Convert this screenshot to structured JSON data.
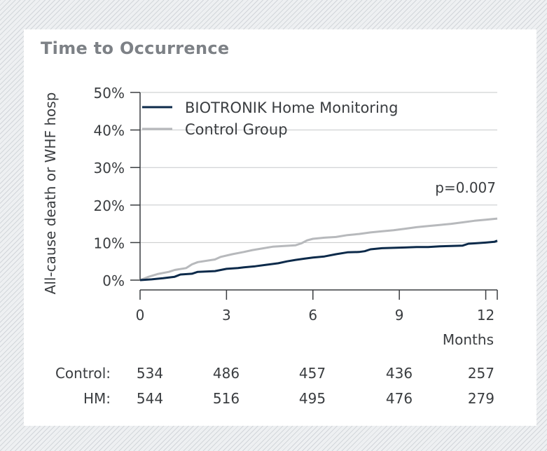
{
  "chart_data": {
    "type": "line",
    "title": "Time to Occurrence",
    "ylabel": "All-cause death or WHF hosp",
    "xlabel": "Months",
    "xlim": [
      0,
      12.4
    ],
    "ylim": [
      0,
      50
    ],
    "xticks": [
      0,
      3,
      6,
      9,
      12
    ],
    "yticks": [
      0,
      10,
      20,
      30,
      40,
      50
    ],
    "ytick_labels": [
      "0%",
      "10%",
      "20%",
      "30%",
      "40%",
      "50%"
    ],
    "grid": true,
    "legend": "top-left",
    "annotation": "p=0.007",
    "colors": {
      "hm": "#0c2a4a",
      "control": "#b7b9bc",
      "grid": "#c6c8ca",
      "axis": "#3a3d40"
    },
    "series": [
      {
        "name": "BIOTRONIK Home Monitoring",
        "x": [
          0,
          0.4,
          0.8,
          1.2,
          1.4,
          1.8,
          2.0,
          2.6,
          3.0,
          3.4,
          3.6,
          4.0,
          4.4,
          4.8,
          5.1,
          5.4,
          5.7,
          6.0,
          6.4,
          6.8,
          7.2,
          7.6,
          7.8,
          8.0,
          8.4,
          8.8,
          9.2,
          9.6,
          10.0,
          10.4,
          10.8,
          11.2,
          11.4,
          11.6,
          12.0,
          12.3,
          12.4
        ],
        "y": [
          0,
          0.2,
          0.5,
          0.9,
          1.5,
          1.7,
          2.2,
          2.4,
          3.0,
          3.2,
          3.4,
          3.7,
          4.1,
          4.5,
          5.0,
          5.4,
          5.7,
          6.0,
          6.3,
          6.9,
          7.4,
          7.5,
          7.7,
          8.2,
          8.5,
          8.6,
          8.7,
          8.8,
          8.8,
          9.0,
          9.1,
          9.2,
          9.7,
          9.8,
          10.0,
          10.2,
          10.5
        ]
      },
      {
        "name": "Control Group",
        "x": [
          0,
          0.3,
          0.6,
          1.0,
          1.2,
          1.6,
          1.8,
          2.0,
          2.6,
          2.8,
          3.2,
          3.6,
          3.9,
          4.3,
          4.6,
          5.0,
          5.4,
          5.6,
          5.8,
          6.0,
          6.4,
          6.8,
          7.2,
          7.6,
          8.0,
          8.4,
          8.8,
          9.2,
          9.6,
          10.0,
          10.4,
          10.8,
          11.2,
          11.6,
          12.0,
          12.4
        ],
        "y": [
          0,
          0.9,
          1.6,
          2.2,
          2.7,
          3.2,
          4.2,
          4.8,
          5.5,
          6.2,
          6.9,
          7.5,
          8.0,
          8.5,
          8.9,
          9.1,
          9.3,
          9.8,
          10.6,
          11.0,
          11.3,
          11.5,
          12.0,
          12.3,
          12.7,
          13.0,
          13.3,
          13.7,
          14.1,
          14.4,
          14.7,
          15.0,
          15.4,
          15.8,
          16.1,
          16.4
        ]
      }
    ]
  },
  "risk_table": {
    "rows": [
      {
        "label": "Control:",
        "values": [
          "534",
          "486",
          "457",
          "436",
          "257"
        ]
      },
      {
        "label": "HM:",
        "values": [
          "544",
          "516",
          "495",
          "476",
          "279"
        ]
      }
    ]
  }
}
